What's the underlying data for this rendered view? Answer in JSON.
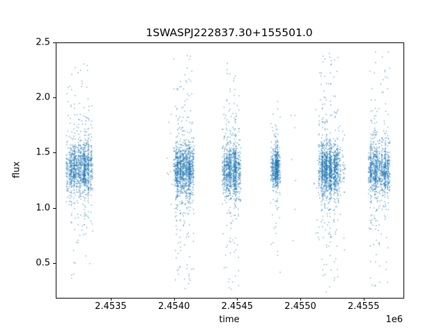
{
  "window": {
    "background_color": "#ffffff",
    "text_color": "#000000"
  },
  "chart_data": {
    "type": "scatter",
    "title": "1SWASPJ222837.30+155501.0",
    "xlabel": "time",
    "ylabel": "flux",
    "x_offset_label": "1e6",
    "xlim": [
      2453065,
      2455810
    ],
    "ylim": [
      0.19,
      2.5
    ],
    "grid": false,
    "legend": null,
    "x_ticks": [
      {
        "value": 2453500,
        "label": "2.4535"
      },
      {
        "value": 2454000,
        "label": "2.4540"
      },
      {
        "value": 2454500,
        "label": "2.4545"
      },
      {
        "value": 2455000,
        "label": "2.4550"
      },
      {
        "value": 2455500,
        "label": "2.4555"
      }
    ],
    "y_ticks": [
      {
        "value": 0.5,
        "label": "0.5"
      },
      {
        "value": 1.0,
        "label": "1.0"
      },
      {
        "value": 1.5,
        "label": "1.5"
      },
      {
        "value": 2.0,
        "label": "2.0"
      },
      {
        "value": 2.5,
        "label": "2.5"
      }
    ],
    "marker_color": "#1f77b4",
    "marker_alpha": 0.65,
    "marker_size_px": 1.4,
    "seed": 20230917,
    "clusters": [
      {
        "t0": 2453142,
        "t1": 2453346,
        "nights": 19,
        "ppn": 130,
        "mu": 1.37,
        "s_core": 0.1,
        "s_mid": 0.27,
        "tail_frac": 0.07,
        "fmin": 0.33,
        "fmax": 2.42
      },
      {
        "t0": 2453935,
        "t1": 2453979,
        "nights": 4,
        "ppn": 8,
        "mu": 1.3,
        "s_core": 0.3,
        "s_mid": 0.4,
        "tail_frac": 0.15,
        "fmin": 0.6,
        "fmax": 1.9
      },
      {
        "t0": 2453996,
        "t1": 2454150,
        "nights": 15,
        "ppn": 140,
        "mu": 1.36,
        "s_core": 0.11,
        "s_mid": 0.27,
        "tail_frac": 0.07,
        "fmin": 0.27,
        "fmax": 2.4
      },
      {
        "t0": 2454376,
        "t1": 2454514,
        "nights": 13,
        "ppn": 130,
        "mu": 1.36,
        "s_core": 0.11,
        "s_mid": 0.26,
        "tail_frac": 0.08,
        "fmin": 0.27,
        "fmax": 2.37
      },
      {
        "t0": 2454762,
        "t1": 2454828,
        "nights": 7,
        "ppn": 180,
        "mu": 1.37,
        "s_core": 0.08,
        "s_mid": 0.2,
        "tail_frac": 0.04,
        "fmin": 0.36,
        "fmax": 2.02
      },
      {
        "t0": 2454922,
        "t1": 2454949,
        "nights": 3,
        "ppn": 14,
        "mu": 1.3,
        "s_core": 0.3,
        "s_mid": 0.35,
        "tail_frac": 0.1,
        "fmin": 0.7,
        "fmax": 1.85
      },
      {
        "t0": 2455098,
        "t1": 2455125,
        "nights": 3,
        "ppn": 10,
        "mu": 1.35,
        "s_core": 0.3,
        "s_mid": 0.4,
        "tail_frac": 0.15,
        "fmin": 0.55,
        "fmax": 2.1
      },
      {
        "t0": 2455136,
        "t1": 2455302,
        "nights": 16,
        "ppn": 160,
        "mu": 1.36,
        "s_core": 0.11,
        "s_mid": 0.28,
        "tail_frac": 0.08,
        "fmin": 0.24,
        "fmax": 2.43
      },
      {
        "t0": 2455313,
        "t1": 2455340,
        "nights": 3,
        "ppn": 55,
        "mu": 1.37,
        "s_core": 0.12,
        "s_mid": 0.3,
        "tail_frac": 0.08,
        "fmin": 0.5,
        "fmax": 2.2
      },
      {
        "t0": 2455533,
        "t1": 2455693,
        "nights": 15,
        "ppn": 165,
        "mu": 1.36,
        "s_core": 0.11,
        "s_mid": 0.28,
        "tail_frac": 0.08,
        "fmin": 0.27,
        "fmax": 2.43
      }
    ]
  }
}
